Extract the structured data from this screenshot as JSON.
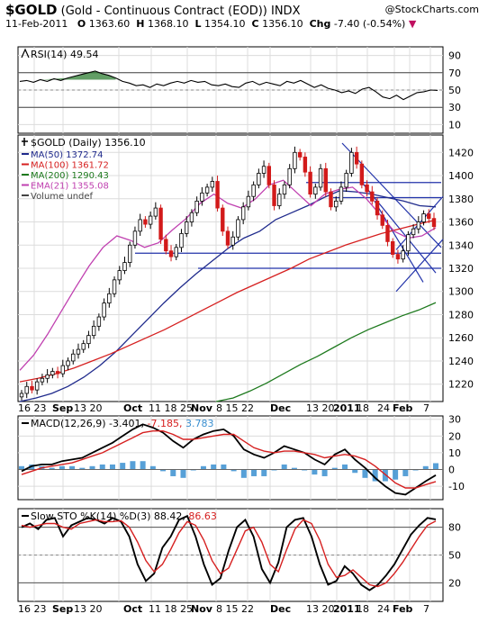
{
  "header": {
    "symbol": "$GOLD",
    "description": "(Gold - Continuous Contract (EOD))",
    "exchange": "INDX",
    "brand": "@StockCharts.com",
    "date": "11-Feb-2011",
    "open_label": "O",
    "open": "1363.60",
    "high_label": "H",
    "high": "1368.10",
    "low_label": "L",
    "low": "1354.10",
    "close_label": "C",
    "close": "1356.10",
    "chg_label": "Chg",
    "chg": "-7.40 (-0.54%)"
  },
  "x_axis_labels": [
    "16 23",
    "Sep",
    "13 20",
    "Oct",
    "11 18 25",
    "Nov",
    "8 15 22",
    "Dec",
    "13 20",
    "2011",
    "18",
    "24",
    "Feb",
    "7"
  ],
  "chart_data": [
    {
      "panel": "rsi",
      "type": "line",
      "title": "RSI(14) 49.54",
      "yticks": [
        90,
        70,
        50,
        30,
        10
      ],
      "ylim": [
        0,
        100
      ],
      "reference_lines": [
        70,
        30
      ],
      "last_value": 49.54,
      "series": [
        {
          "name": "RSI(14)",
          "values": [
            60,
            61,
            59,
            62,
            60,
            63,
            61,
            64,
            66,
            68,
            70,
            72,
            69,
            67,
            64,
            60,
            58,
            55,
            56,
            53,
            57,
            55,
            58,
            60,
            58,
            61,
            59,
            60,
            56,
            55,
            57,
            54,
            53,
            58,
            60,
            56,
            59,
            57,
            55,
            60,
            58,
            61,
            57,
            53,
            56,
            52,
            50,
            47,
            49,
            46,
            51,
            53,
            48,
            42,
            40,
            44,
            39,
            43,
            47,
            48,
            50,
            49.54
          ]
        }
      ],
      "color": "#000000",
      "fill_overbought": "#2e7d32"
    },
    {
      "panel": "price",
      "type": "line",
      "title": "$GOLD (Daily) 1356.10",
      "ylim": [
        1205,
        1435
      ],
      "yticks": [
        1420,
        1400,
        1380,
        1360,
        1340,
        1320,
        1300,
        1280,
        1260,
        1240,
        1220
      ],
      "legend": [
        {
          "name": "MA(50)",
          "value": "1372.74",
          "color": "#1f2a8c"
        },
        {
          "name": "MA(100)",
          "value": "1361.72",
          "color": "#d62020"
        },
        {
          "name": "MA(200)",
          "value": "1290.43",
          "color": "#1e7a1e"
        },
        {
          "name": "EMA(21)",
          "value": "1355.08",
          "color": "#c040b0"
        },
        {
          "name": "Volume undef",
          "value": "",
          "color": "#444444"
        }
      ],
      "series": [
        {
          "name": "$GOLD",
          "values": [
            1212,
            1218,
            1215,
            1222,
            1225,
            1228,
            1231,
            1229,
            1236,
            1240,
            1246,
            1250,
            1255,
            1262,
            1270,
            1278,
            1290,
            1298,
            1310,
            1318,
            1325,
            1340,
            1352,
            1362,
            1358,
            1365,
            1372,
            1345,
            1335,
            1330,
            1338,
            1350,
            1360,
            1368,
            1378,
            1385,
            1390,
            1395,
            1372,
            1352,
            1340,
            1347,
            1362,
            1373,
            1382,
            1392,
            1402,
            1408,
            1392,
            1374,
            1384,
            1392,
            1406,
            1420,
            1416,
            1403,
            1384,
            1390,
            1406,
            1386,
            1373,
            1378,
            1390,
            1402,
            1420,
            1410,
            1392,
            1386,
            1378,
            1366,
            1357,
            1343,
            1332,
            1328,
            1335,
            1349,
            1354,
            1360,
            1367,
            1363,
            1356
          ]
        },
        {
          "name": "MA(50)",
          "values": [
            1205,
            1208,
            1212,
            1218,
            1226,
            1236,
            1248,
            1262,
            1276,
            1290,
            1303,
            1315,
            1326,
            1337,
            1346,
            1352,
            1362,
            1368,
            1374,
            1381,
            1387,
            1386,
            1384,
            1381,
            1378,
            1374,
            1373
          ]
        },
        {
          "name": "MA(100)",
          "values": [
            1222,
            1225,
            1229,
            1234,
            1240,
            1246,
            1253,
            1260,
            1267,
            1275,
            1283,
            1291,
            1299,
            1306,
            1313,
            1320,
            1328,
            1334,
            1340,
            1345,
            1350,
            1354,
            1358,
            1361.72
          ]
        },
        {
          "name": "MA(200)",
          "values": [
            1205,
            1208,
            1214,
            1221,
            1229,
            1237,
            1244,
            1252,
            1260,
            1267,
            1273,
            1279,
            1284,
            1290.43
          ]
        },
        {
          "name": "EMA(21)",
          "values": [
            1232,
            1245,
            1263,
            1283,
            1303,
            1322,
            1338,
            1348,
            1344,
            1338,
            1342,
            1353,
            1363,
            1376,
            1384,
            1376,
            1372,
            1380,
            1392,
            1396,
            1385,
            1374,
            1384,
            1388,
            1390,
            1380,
            1366,
            1352,
            1346,
            1348,
            1355.08
          ]
        }
      ],
      "trend_lines": [
        {
          "from": [
            1300,
            1333
          ],
          "to": [
            1520,
            1333
          ]
        },
        {
          "from": [
            1300,
            1320
          ],
          "to": [
            1520,
            1320
          ]
        },
        {
          "from": [
            1400,
            1394
          ],
          "to": [
            1520,
            1394
          ]
        },
        {
          "from": [
            1380,
            1381
          ],
          "to": [
            1520,
            1381
          ]
        }
      ]
    },
    {
      "panel": "macd",
      "type": "line",
      "title": "MACD(12,26,9)",
      "values_shown": {
        "macd": -3.401,
        "signal": -7.185,
        "histogram": 3.783
      },
      "ylim": [
        -18,
        32
      ],
      "yticks": [
        30,
        20,
        10,
        0,
        -10
      ],
      "series": [
        {
          "name": "MACD(12,26,9)",
          "color": "#000000",
          "values": [
            -1,
            2,
            3,
            3,
            5,
            6,
            7,
            10,
            13,
            16,
            20,
            24,
            27,
            25,
            22,
            17,
            13,
            18,
            21,
            23,
            24,
            20,
            12,
            9,
            7,
            10,
            14,
            12,
            10,
            6,
            3,
            9,
            12,
            6,
            1,
            -5,
            -10,
            -14,
            -15,
            -11,
            -7,
            -3.401
          ]
        },
        {
          "name": "Signal",
          "color": "#d62020",
          "values": [
            -3,
            -1,
            1,
            2,
            3,
            4,
            6,
            8,
            10,
            13,
            16,
            19,
            22,
            23,
            23,
            21,
            18,
            18,
            19,
            20,
            21,
            21,
            17,
            13,
            11,
            10,
            11,
            11,
            10,
            9,
            7,
            8,
            9,
            8,
            6,
            2,
            -3,
            -8,
            -11,
            -11,
            -9,
            -7.185
          ]
        },
        {
          "name": "Histogram",
          "color": "#3a8fd0",
          "values": [
            2,
            3,
            2,
            1,
            2,
            2,
            1,
            2,
            3,
            3,
            4,
            5,
            5,
            2,
            -1,
            -4,
            -5,
            0,
            2,
            3,
            3,
            -1,
            -5,
            -4,
            -4,
            0,
            3,
            1,
            0,
            -3,
            -4,
            1,
            3,
            -2,
            -5,
            -7,
            -7,
            -6,
            -4,
            0,
            2,
            3.783
          ]
        }
      ]
    },
    {
      "panel": "sto",
      "type": "line",
      "title": "Slow STO %K(14) %D(3)",
      "values_shown": {
        "k": 88.42,
        "d": 86.63
      },
      "ylim": [
        0,
        100
      ],
      "yticks": [
        80,
        50,
        20
      ],
      "series": [
        {
          "name": "%K(14)",
          "color": "#000000",
          "values": [
            80,
            84,
            78,
            88,
            90,
            70,
            82,
            86,
            90,
            88,
            84,
            90,
            86,
            70,
            40,
            22,
            30,
            58,
            70,
            88,
            92,
            70,
            40,
            18,
            25,
            55,
            80,
            88,
            70,
            35,
            20,
            42,
            80,
            88,
            90,
            70,
            40,
            18,
            22,
            38,
            30,
            18,
            12,
            18,
            28,
            40,
            56,
            72,
            82,
            90,
            88.42
          ]
        },
        {
          "name": "%D(3)",
          "color": "#d62020",
          "values": [
            82,
            80,
            82,
            84,
            84,
            80,
            78,
            84,
            86,
            88,
            86,
            86,
            87,
            80,
            64,
            44,
            32,
            40,
            56,
            74,
            86,
            82,
            66,
            44,
            30,
            36,
            56,
            76,
            80,
            64,
            40,
            32,
            56,
            78,
            88,
            84,
            66,
            40,
            26,
            28,
            34,
            26,
            18,
            16,
            20,
            30,
            42,
            56,
            70,
            82,
            86.63
          ]
        }
      ]
    }
  ]
}
